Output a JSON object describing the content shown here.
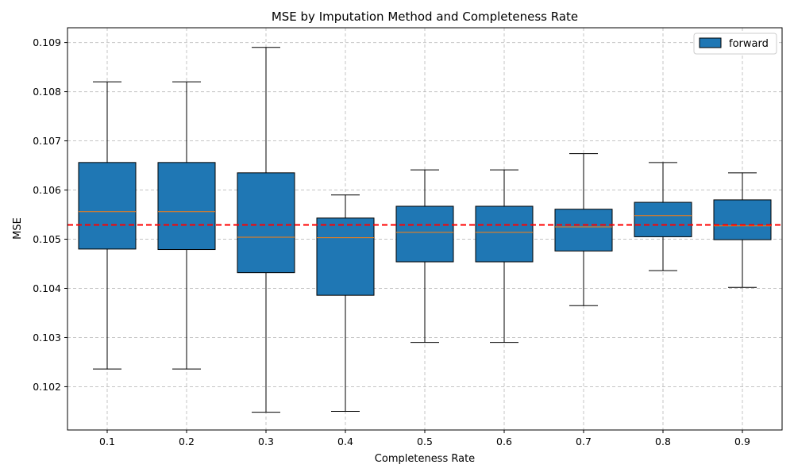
{
  "chart_data": {
    "type": "box",
    "title": "MSE by Imputation Method and Completeness Rate",
    "xlabel": "Completeness Rate",
    "ylabel": "MSE",
    "categories": [
      "0.1",
      "0.2",
      "0.3",
      "0.4",
      "0.5",
      "0.6",
      "0.7",
      "0.8",
      "0.9"
    ],
    "ylim": [
      0.10112,
      0.1093
    ],
    "yticks": [
      0.102,
      0.103,
      0.104,
      0.105,
      0.106,
      0.107,
      0.108,
      0.109
    ],
    "ytick_labels": [
      "0.102",
      "0.103",
      "0.104",
      "0.105",
      "0.106",
      "0.107",
      "0.108",
      "0.109"
    ],
    "grid": true,
    "legend_position": "top-right",
    "series": [
      {
        "name": "forward",
        "color": "#1f77b4",
        "median_color": "#ff7f0e",
        "boxes": [
          {
            "whislo": 0.10236,
            "q1": 0.1048,
            "med": 0.10556,
            "q3": 0.10656,
            "whishi": 0.1082
          },
          {
            "whislo": 0.10236,
            "q1": 0.10479,
            "med": 0.10556,
            "q3": 0.10656,
            "whishi": 0.1082
          },
          {
            "whislo": 0.10148,
            "q1": 0.10432,
            "med": 0.10504,
            "q3": 0.10635,
            "whishi": 0.1089
          },
          {
            "whislo": 0.1015,
            "q1": 0.10386,
            "med": 0.10503,
            "q3": 0.10543,
            "whishi": 0.1059
          },
          {
            "whislo": 0.1029,
            "q1": 0.10454,
            "med": 0.10514,
            "q3": 0.10567,
            "whishi": 0.10641
          },
          {
            "whislo": 0.1029,
            "q1": 0.10454,
            "med": 0.10514,
            "q3": 0.10567,
            "whishi": 0.10641
          },
          {
            "whislo": 0.10365,
            "q1": 0.10476,
            "med": 0.10525,
            "q3": 0.10561,
            "whishi": 0.10674
          },
          {
            "whislo": 0.10436,
            "q1": 0.10505,
            "med": 0.10548,
            "q3": 0.10575,
            "whishi": 0.10656
          },
          {
            "whislo": 0.10402,
            "q1": 0.10499,
            "med": 0.10527,
            "q3": 0.1058,
            "whishi": 0.10635
          }
        ]
      }
    ],
    "reference_line": {
      "value": 0.10529,
      "color": "#ff0000",
      "style": "dashed"
    }
  }
}
